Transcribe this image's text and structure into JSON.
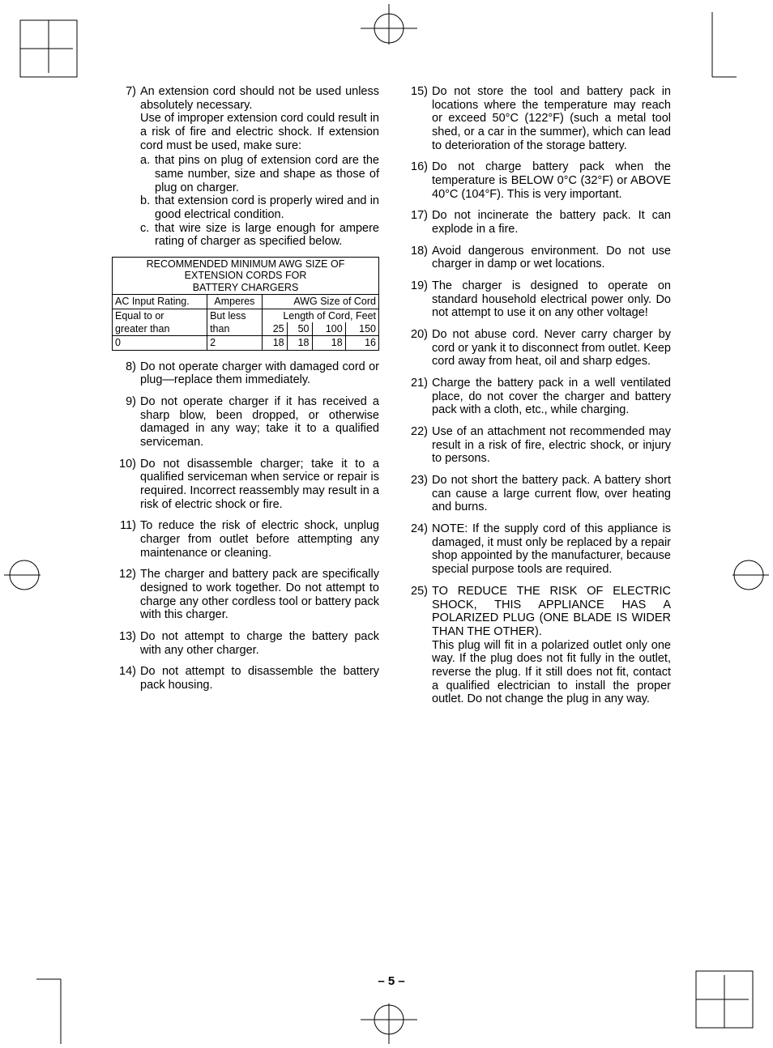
{
  "page_number": "– 5 –",
  "left_items": [
    {
      "n": "7)",
      "text": "An extension cord should not be used unless absolutely necessary.",
      "text2": "Use of improper extension cord could result in a risk of fire and electric shock. If extension cord must be used, make sure:",
      "subs": [
        {
          "l": "a.",
          "t": "that pins on plug of extension cord are the same number, size and shape as those of plug on charger."
        },
        {
          "l": "b.",
          "t": "that extension cord is prop­erly wired and in good electrical condition."
        },
        {
          "l": "c.",
          "t": "that wire size is large enough for ampere rating of charger as specified below."
        }
      ]
    }
  ],
  "table": {
    "title": [
      "RECOMMENDED MINIMUM AWG SIZE OF",
      "EXTENSION CORDS FOR",
      "BATTERY CHARGERS"
    ],
    "head": [
      "AC Input Rating.",
      "Amperes",
      "AWG Size of Cord"
    ],
    "sub1": [
      "Equal to or",
      "But less",
      "Length of Cord, Feet"
    ],
    "sub2": [
      "greater than",
      "than",
      "25",
      "50",
      "100",
      "150"
    ],
    "data": [
      "0",
      "2",
      "18",
      "18",
      "18",
      "16"
    ]
  },
  "left_items2": [
    {
      "n": "8)",
      "text": "Do not operate charger with dam­aged cord or plug—replace them immediately."
    },
    {
      "n": "9)",
      "text": "Do not operate charger if it has re­ceived a sharp blow, been dropped, or otherwise damaged in any way; take it to a qualified serviceman."
    },
    {
      "n": "10)",
      "text": "Do not disassemble charger; take it to a qualified serviceman when ser­vice or repair is required. Incorrect reassembly may result in a risk of electric shock or fire."
    },
    {
      "n": "11)",
      "text": "To reduce the risk of electric shock, unplug charger from outlet before attempting any maintenance or cleaning."
    },
    {
      "n": "12)",
      "text": "The charger and battery pack are specifically designed to work to­gether. Do not attempt to charge any other cordless tool or battery pack with this charger."
    },
    {
      "n": "13)",
      "text": "Do not attempt to charge the battery pack with any other charger."
    },
    {
      "n": "14)",
      "text": "Do not attempt to disassemble the battery pack housing."
    }
  ],
  "right_items": [
    {
      "n": "15)",
      "text": "Do not store the tool and battery pack in locations where the tempera­ture may reach or exceed 50°C (122°F) (such a metal tool shed, or a car in the summer), which can lead to de­terioration of the storage battery."
    },
    {
      "n": "16)",
      "text": "Do not charge battery pack when the temperature is BELOW 0°C (32°F) or ABOVE 40°C (104°F). This is very important."
    },
    {
      "n": "17)",
      "text": "Do not incinerate the battery pack. It can explode in a fire."
    },
    {
      "n": "18)",
      "text": "Avoid dangerous environment. Do not use charger in damp or wet locations."
    },
    {
      "n": "19)",
      "text": "The charger is designed to operate on standard household electrical power only. Do not attempt to use it on any other voltage!"
    },
    {
      "n": "20)",
      "text": "Do not abuse cord. Never carry char­ger by cord or yank it to disconnect from outlet. Keep cord away from heat, oil and sharp edges."
    },
    {
      "n": "21)",
      "text": "Charge the battery pack in a well ventilated place, do not cover the charger and battery pack with a cloth, etc., while charging."
    },
    {
      "n": "22)",
      "text": "Use of an attachment not recom­mended may result in a risk of fire, electric shock, or injury to persons."
    },
    {
      "n": "23)",
      "text": "Do not short the battery pack. A bat­tery short can cause a large current flow, over heating and burns."
    },
    {
      "n": "24)",
      "text": "NOTE: If the supply cord of this ap­pliance is damaged, it must only be replaced by a repair shop appointed by the manufacturer, because special purpose tools are required."
    },
    {
      "n": "25)",
      "text": "TO REDUCE THE RISK OF ELEC­TRIC SHOCK, THIS APPLIANCE HAS A POLARIZED PLUG (ONE BLADE IS WIDER THAN THE OTHER).",
      "text2": "This plug will fit in a polarized outlet only one way. If the plug does not fit fully in the outlet, reverse the plug. If it still does not fit, contact a qualified electrician to install the proper outlet. Do not change the plug in any way."
    }
  ]
}
